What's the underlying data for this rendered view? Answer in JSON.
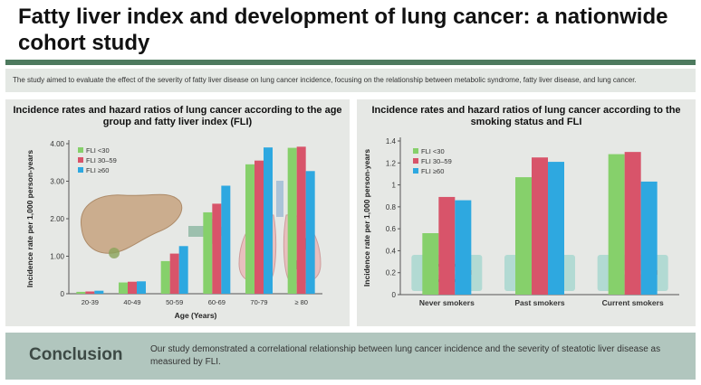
{
  "title": "Fatty liver index and development of lung cancer: a nationwide cohort study",
  "summary": "The study aimed to evaluate the effect of the severity of fatty liver disease on lung cancer incidence, focusing on the relationship between metabolic syndrome, fatty liver disease, and lung cancer.",
  "colors": {
    "fli_lt30": "#86d06b",
    "fli_30_59": "#d8546a",
    "fli_ge60": "#2ea8e0",
    "accent": "#4d7a5e",
    "panel_bg": "#e6e8e5",
    "conclusion_bg": "#b1c6be"
  },
  "conclusion": {
    "heading": "Conclusion",
    "text": "Our study demonstrated a correlational relationship between lung cancer incidence and the severity of steatotic liver disease as measured by FLI."
  },
  "chart_data": [
    {
      "type": "bar",
      "title": "Incidence rates and hazard ratios of lung cancer according to the age group and fatty liver index (FLI)",
      "xlabel": "Age (Years)",
      "ylabel": "Incidence rate per 1,000 person-years",
      "ylim": [
        0,
        4.0
      ],
      "yticks": [
        "0",
        "1.00",
        "2.00",
        "3.00",
        "4.00"
      ],
      "categories": [
        "20-39",
        "40-49",
        "50-59",
        "60-69",
        "70-79",
        "≥ 80"
      ],
      "series": [
        {
          "name": "FLI <30",
          "values": [
            0.05,
            0.3,
            0.87,
            2.17,
            3.45,
            3.89
          ]
        },
        {
          "name": "FLI 30–59",
          "values": [
            0.06,
            0.32,
            1.07,
            2.4,
            3.55,
            3.92
          ]
        },
        {
          "name": "FLI ≥60",
          "values": [
            0.08,
            0.33,
            1.27,
            2.88,
            3.9,
            3.27
          ]
        }
      ],
      "legend": "top-left",
      "illustration": [
        "liver",
        "arrow",
        "lungs"
      ]
    },
    {
      "type": "bar",
      "title": "Incidence rates and hazard ratios of lung cancer according to the smoking status and FLI",
      "xlabel": "",
      "ylabel": "Incidence rate per 1,000 person-years",
      "ylim": [
        0,
        1.4
      ],
      "yticks": [
        "0",
        "0.2",
        "0.4",
        "0.6",
        "0.8",
        "1",
        "1.2",
        "1.4"
      ],
      "categories": [
        "Never smokers",
        "Past smokers",
        "Current smokers"
      ],
      "series": [
        {
          "name": "FLI <30",
          "values": [
            0.56,
            1.07,
            1.28
          ]
        },
        {
          "name": "FLI 30–59",
          "values": [
            0.89,
            1.25,
            1.3
          ]
        },
        {
          "name": "FLI ≥60",
          "values": [
            0.86,
            1.21,
            1.03
          ]
        }
      ],
      "legend": "top-left",
      "icons": [
        "cigarette-crossed-icon",
        "cigarette-prohibited-icon",
        "cigarette-icon"
      ]
    }
  ]
}
